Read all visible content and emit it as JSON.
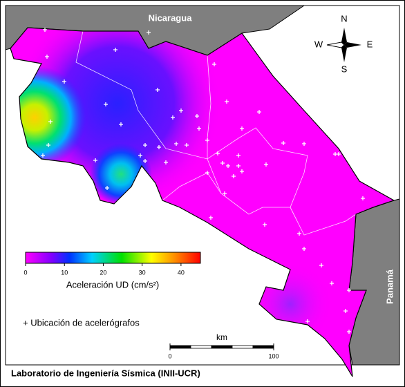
{
  "labels": {
    "nicaragua": "Nicaragua",
    "panama": "Panamá"
  },
  "compass": {
    "n": "N",
    "s": "S",
    "e": "E",
    "w": "W"
  },
  "colorbar": {
    "label": "Aceleración UD (cm/s²)",
    "lim": [
      0,
      45
    ],
    "ticks": [
      0,
      10,
      20,
      30,
      40
    ]
  },
  "legend": {
    "stations": "+ Ubicación de acelerógrafos"
  },
  "scale_bar": {
    "unit": "km",
    "lim": [
      0,
      100
    ],
    "ticks": [
      0,
      100
    ]
  },
  "footer": "Laboratorio de Ingeniería Sísmica (INII-UCR)"
}
